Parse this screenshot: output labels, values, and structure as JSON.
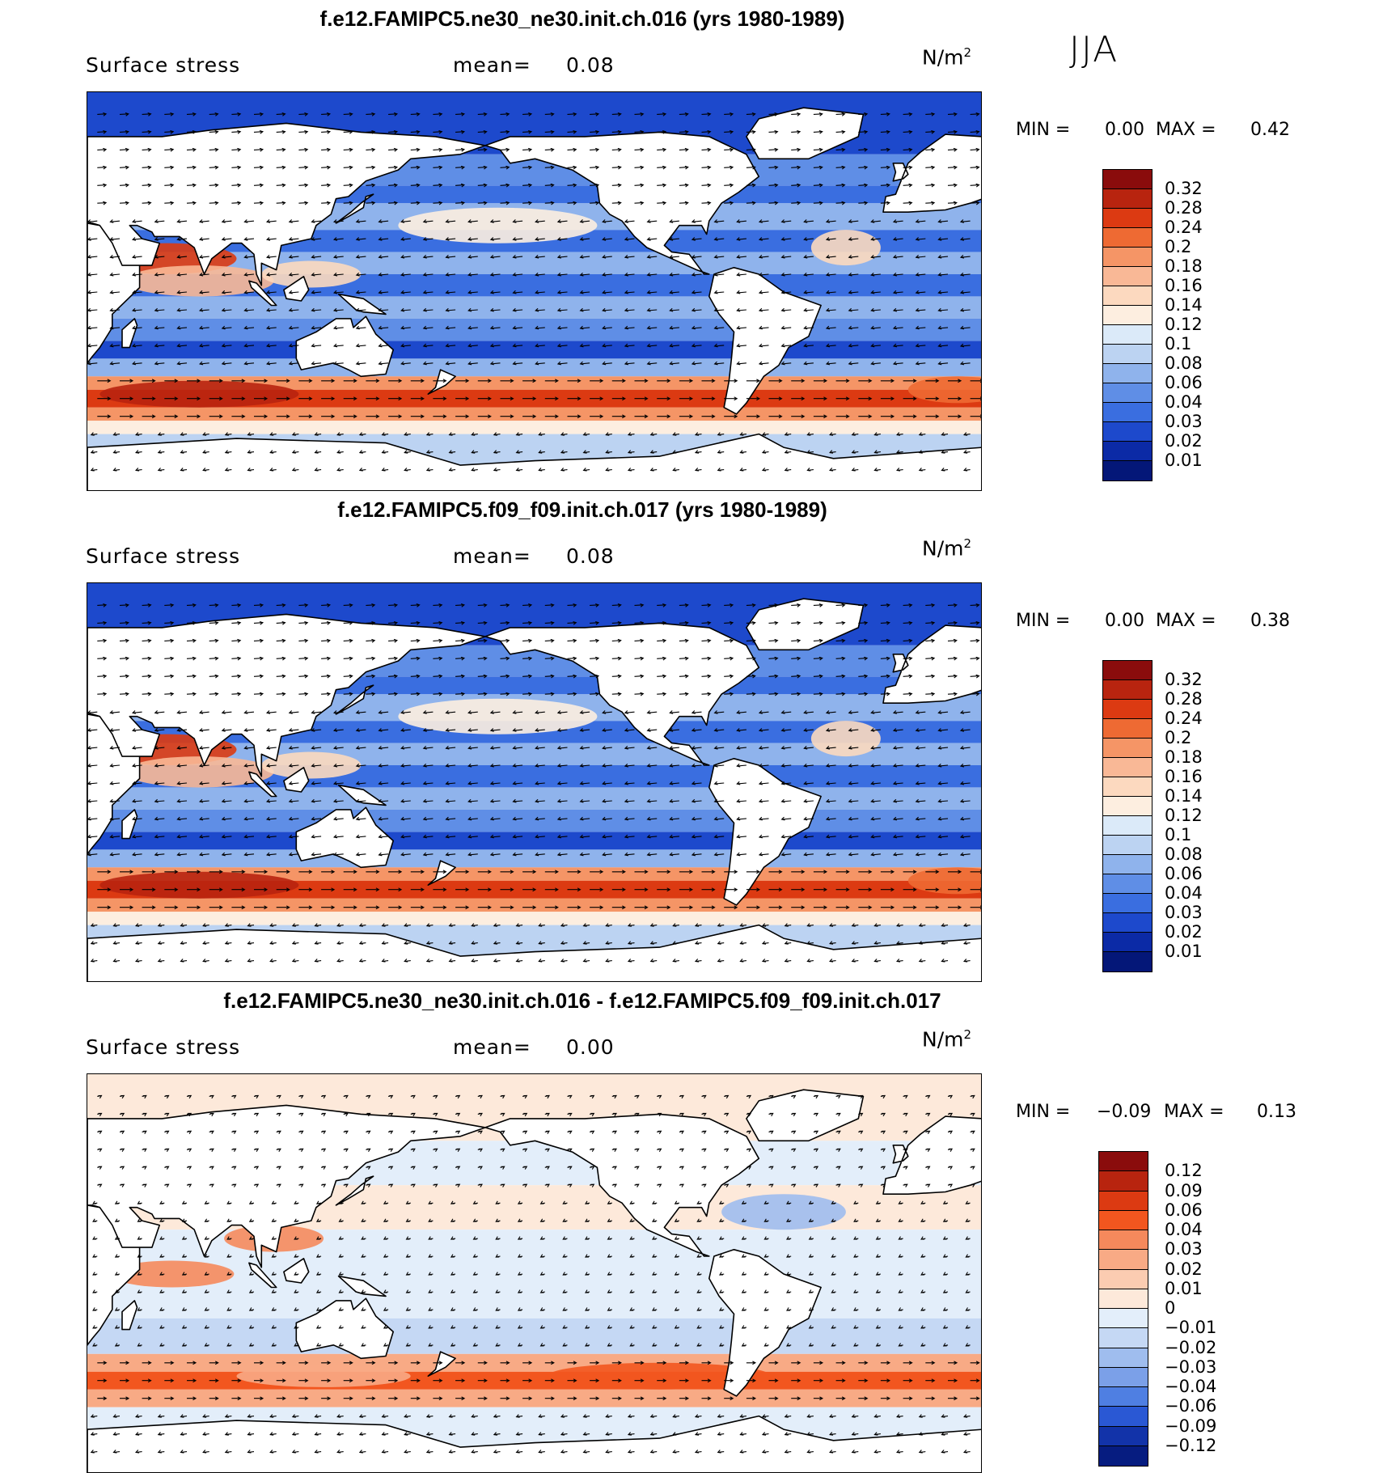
{
  "season": "JJA",
  "chart_data": [
    {
      "type": "heatmap",
      "title": "f.e12.FAMIPC5.ne30_ne30.init.ch.016 (yrs 1980-1989)",
      "left_label": "Surface stress",
      "mean_label": "mean=",
      "mean_value": "0.08",
      "units": "N/m",
      "units_exp": "2",
      "min_label": "MIN =",
      "min_value": "0.00",
      "max_label": "MAX =",
      "max_value": "0.42",
      "colorbar_ticks": [
        "0.32",
        "0.28",
        "0.24",
        "0.2",
        "0.18",
        "0.16",
        "0.14",
        "0.12",
        "0.1",
        "0.08",
        "0.06",
        "0.04",
        "0.03",
        "0.02",
        "0.01"
      ],
      "colors": [
        "#8a0c0c",
        "#b8240f",
        "#dc3a12",
        "#ee6a33",
        "#f59566",
        "#f9b896",
        "#fcd9bf",
        "#fdeee0",
        "#dbeaf9",
        "#bcd3f2",
        "#8fb3ec",
        "#5f8ee6",
        "#3a6ee0",
        "#1d49cc",
        "#0b2aa6",
        "#041778"
      ]
    },
    {
      "type": "heatmap",
      "title": "f.e12.FAMIPC5.f09_f09.init.ch.017 (yrs 1980-1989)",
      "left_label": "Surface stress",
      "mean_label": "mean=",
      "mean_value": "0.08",
      "units": "N/m",
      "units_exp": "2",
      "min_label": "MIN =",
      "min_value": "0.00",
      "max_label": "MAX =",
      "max_value": "0.38",
      "colorbar_ticks": [
        "0.32",
        "0.28",
        "0.24",
        "0.2",
        "0.18",
        "0.16",
        "0.14",
        "0.12",
        "0.1",
        "0.08",
        "0.06",
        "0.04",
        "0.03",
        "0.02",
        "0.01"
      ],
      "colors": [
        "#8a0c0c",
        "#b8240f",
        "#dc3a12",
        "#ee6a33",
        "#f59566",
        "#f9b896",
        "#fcd9bf",
        "#fdeee0",
        "#dbeaf9",
        "#bcd3f2",
        "#8fb3ec",
        "#5f8ee6",
        "#3a6ee0",
        "#1d49cc",
        "#0b2aa6",
        "#041778"
      ]
    },
    {
      "type": "heatmap",
      "title": "f.e12.FAMIPC5.ne30_ne30.init.ch.016 - f.e12.FAMIPC5.f09_f09.init.ch.017",
      "left_label": "Surface stress",
      "mean_label": "mean=",
      "mean_value": "0.00",
      "units": "N/m",
      "units_exp": "2",
      "min_label": "MIN =",
      "min_value": "−0.09",
      "max_label": "MAX =",
      "max_value": "0.13",
      "colorbar_ticks": [
        "0.12",
        "0.09",
        "0.06",
        "0.04",
        "0.03",
        "0.02",
        "0.01",
        "0",
        "−0.01",
        "−0.02",
        "−0.03",
        "−0.04",
        "−0.06",
        "−0.09",
        "−0.12"
      ],
      "colors": [
        "#8a0c0c",
        "#b8240f",
        "#dc3a12",
        "#f2561f",
        "#f5895c",
        "#f8aa85",
        "#fbccb1",
        "#fde9da",
        "#e3eefa",
        "#c5d8f4",
        "#9fbdee",
        "#7ba0e8",
        "#4f7fe2",
        "#2a58d4",
        "#1233a9",
        "#061c80"
      ]
    }
  ]
}
